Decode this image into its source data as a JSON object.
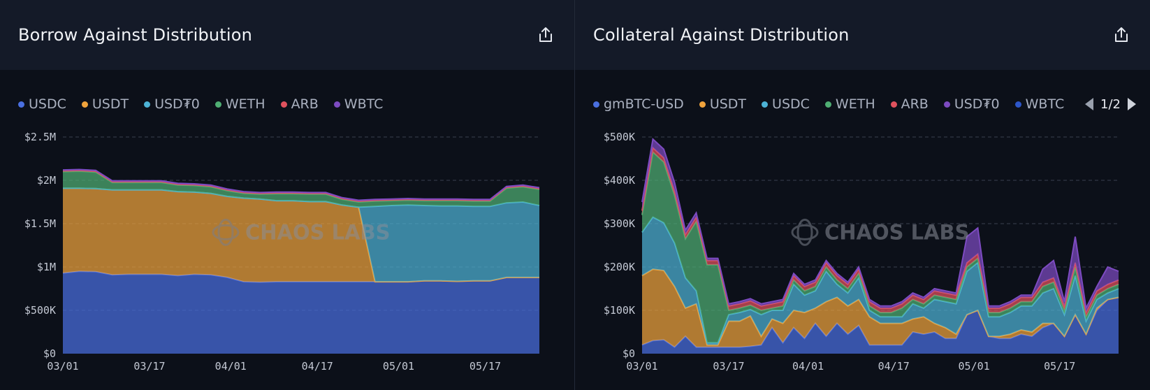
{
  "left": {
    "title": "Borrow Against Distribution",
    "watermark": "CHAOS LABS",
    "legend": [
      {
        "name": "USDC",
        "color": "#4a6fe0"
      },
      {
        "name": "USDT",
        "color": "#f0a33c"
      },
      {
        "name": "USD₮0",
        "color": "#4db3d6"
      },
      {
        "name": "WETH",
        "color": "#4fae73"
      },
      {
        "name": "ARB",
        "color": "#e0525e"
      },
      {
        "name": "WBTC",
        "color": "#7d4bc1"
      }
    ]
  },
  "right": {
    "title": "Collateral Against Distribution",
    "watermark": "CHAOS LABS",
    "legend": [
      {
        "name": "gmBTC-USD",
        "color": "#4a6fe0"
      },
      {
        "name": "USDT",
        "color": "#f0a33c"
      },
      {
        "name": "USDC",
        "color": "#4db3d6"
      },
      {
        "name": "WETH",
        "color": "#4fae73"
      },
      {
        "name": "ARB",
        "color": "#e0525e"
      },
      {
        "name": "USD₮0",
        "color": "#7d4bc1"
      },
      {
        "name": "WBTC",
        "color": "#2d56c8"
      }
    ],
    "pager": "1/2"
  },
  "chart_data": [
    {
      "type": "area",
      "title": "Borrow Against Distribution",
      "x": [
        "03/01",
        "03/04",
        "03/07",
        "03/10",
        "03/13",
        "03/16",
        "03/19",
        "03/22",
        "03/25",
        "03/28",
        "03/31",
        "04/03",
        "04/06",
        "04/09",
        "04/12",
        "04/15",
        "04/18",
        "04/21",
        "04/24",
        "04/27",
        "04/30",
        "05/03",
        "05/06",
        "05/09",
        "05/12",
        "05/15",
        "05/18",
        "05/21",
        "05/24",
        "05/27"
      ],
      "x_ticks": [
        "03/01",
        "03/17",
        "04/01",
        "04/17",
        "05/01",
        "05/17"
      ],
      "y_ticks": [
        "$0",
        "$500K",
        "$1M",
        "$1.5M",
        "$2M",
        "$2.5M"
      ],
      "ylim": [
        0,
        2500000
      ],
      "series": [
        {
          "name": "USDC",
          "color": "#4a6fe0",
          "values": [
            930000,
            950000,
            945000,
            910000,
            915000,
            915000,
            915000,
            900000,
            915000,
            910000,
            880000,
            830000,
            825000,
            830000,
            830000,
            830000,
            830000,
            830000,
            830000,
            830000,
            830000,
            830000,
            840000,
            840000,
            835000,
            840000,
            840000,
            880000,
            880000,
            880000
          ]
        },
        {
          "name": "USDT",
          "color": "#f0a33c",
          "values": [
            980000,
            960000,
            960000,
            980000,
            975000,
            975000,
            975000,
            970000,
            950000,
            940000,
            935000,
            965000,
            960000,
            935000,
            935000,
            925000,
            925000,
            885000,
            860000,
            0,
            0,
            0,
            0,
            0,
            0,
            0,
            0,
            0,
            0,
            0
          ]
        },
        {
          "name": "USD₮0",
          "color": "#4db3d6",
          "values": [
            0,
            0,
            0,
            0,
            0,
            0,
            0,
            0,
            0,
            0,
            0,
            0,
            0,
            0,
            0,
            0,
            0,
            0,
            0,
            870000,
            880000,
            885000,
            870000,
            865000,
            870000,
            860000,
            860000,
            860000,
            870000,
            830000
          ]
        },
        {
          "name": "WETH",
          "color": "#4fae73",
          "values": [
            190000,
            195000,
            190000,
            85000,
            85000,
            85000,
            85000,
            75000,
            75000,
            75000,
            65000,
            55000,
            55000,
            80000,
            80000,
            85000,
            85000,
            65000,
            60000,
            60000,
            55000,
            55000,
            55000,
            60000,
            60000,
            60000,
            60000,
            170000,
            175000,
            185000
          ]
        },
        {
          "name": "ARB",
          "color": "#e0525e",
          "values": [
            10000,
            10000,
            10000,
            10000,
            10000,
            10000,
            10000,
            10000,
            10000,
            10000,
            10000,
            10000,
            10000,
            10000,
            10000,
            10000,
            10000,
            10000,
            10000,
            10000,
            10000,
            10000,
            10000,
            10000,
            10000,
            10000,
            10000,
            10000,
            10000,
            10000
          ]
        },
        {
          "name": "WBTC",
          "color": "#7d4bc1",
          "values": [
            10000,
            10000,
            10000,
            10000,
            10000,
            10000,
            10000,
            10000,
            10000,
            10000,
            10000,
            10000,
            10000,
            10000,
            10000,
            10000,
            10000,
            10000,
            10000,
            10000,
            10000,
            10000,
            10000,
            10000,
            10000,
            10000,
            10000,
            10000,
            10000,
            10000
          ]
        }
      ]
    },
    {
      "type": "area",
      "title": "Collateral Against Distribution",
      "x": [
        "03/01",
        "03/03",
        "03/05",
        "03/07",
        "03/09",
        "03/11",
        "03/13",
        "03/15",
        "03/17",
        "03/19",
        "03/21",
        "03/23",
        "03/25",
        "03/27",
        "03/29",
        "03/31",
        "04/02",
        "04/04",
        "04/06",
        "04/08",
        "04/10",
        "04/12",
        "04/14",
        "04/16",
        "04/18",
        "04/20",
        "04/22",
        "04/24",
        "04/26",
        "04/28",
        "04/30",
        "05/02",
        "05/04",
        "05/06",
        "05/08",
        "05/10",
        "05/12",
        "05/14",
        "05/16",
        "05/18",
        "05/20",
        "05/22",
        "05/24",
        "05/26",
        "05/28"
      ],
      "x_ticks": [
        "03/01",
        "03/17",
        "04/01",
        "04/17",
        "05/01",
        "05/17"
      ],
      "y_ticks": [
        "$0",
        "$100K",
        "$200K",
        "$300K",
        "$400K",
        "$500K"
      ],
      "ylim": [
        0,
        500000
      ],
      "series": [
        {
          "name": "gmBTC-USD",
          "color": "#4a6fe0",
          "values": [
            20000,
            30000,
            32000,
            15000,
            40000,
            15000,
            15000,
            15000,
            15000,
            15000,
            17000,
            20000,
            60000,
            25000,
            60000,
            35000,
            70000,
            40000,
            70000,
            45000,
            65000,
            20000,
            20000,
            20000,
            20000,
            50000,
            45000,
            50000,
            35000,
            35000,
            90000,
            100000,
            40000,
            35000,
            35000,
            45000,
            40000,
            60000,
            70000,
            40000,
            90000,
            45000,
            100000,
            125000,
            130000
          ]
        },
        {
          "name": "USDT",
          "color": "#f0a33c",
          "values": [
            160000,
            165000,
            160000,
            140000,
            65000,
            100000,
            5000,
            5000,
            60000,
            60000,
            70000,
            20000,
            20000,
            45000,
            40000,
            60000,
            35000,
            80000,
            60000,
            65000,
            60000,
            65000,
            50000,
            50000,
            50000,
            30000,
            40000,
            20000,
            25000,
            10000,
            0,
            0,
            0,
            5000,
            10000,
            10000,
            10000,
            10000,
            0,
            0,
            0,
            0,
            5000,
            0,
            0
          ]
        },
        {
          "name": "USDC",
          "color": "#4db3d6",
          "values": [
            100000,
            120000,
            110000,
            100000,
            70000,
            30000,
            5000,
            5000,
            15000,
            20000,
            15000,
            50000,
            20000,
            30000,
            60000,
            40000,
            40000,
            70000,
            30000,
            30000,
            50000,
            15000,
            15000,
            15000,
            15000,
            35000,
            20000,
            55000,
            60000,
            70000,
            100000,
            110000,
            45000,
            45000,
            50000,
            55000,
            60000,
            70000,
            80000,
            50000,
            90000,
            30000,
            20000,
            15000,
            20000
          ]
        },
        {
          "name": "WETH",
          "color": "#4fae73",
          "values": [
            40000,
            150000,
            140000,
            110000,
            90000,
            160000,
            180000,
            180000,
            10000,
            10000,
            10000,
            10000,
            5000,
            10000,
            10000,
            10000,
            10000,
            10000,
            10000,
            10000,
            10000,
            10000,
            10000,
            10000,
            20000,
            10000,
            10000,
            10000,
            10000,
            10000,
            10000,
            10000,
            10000,
            10000,
            10000,
            10000,
            10000,
            15000,
            15000,
            10000,
            20000,
            10000,
            10000,
            10000,
            10000
          ]
        },
        {
          "name": "ARB",
          "color": "#e0525e",
          "values": [
            10000,
            10000,
            10000,
            10000,
            10000,
            10000,
            10000,
            10000,
            10000,
            10000,
            10000,
            10000,
            10000,
            10000,
            10000,
            10000,
            10000,
            10000,
            10000,
            10000,
            10000,
            10000,
            10000,
            10000,
            10000,
            10000,
            10000,
            10000,
            10000,
            10000,
            10000,
            10000,
            10000,
            10000,
            10000,
            10000,
            10000,
            10000,
            10000,
            10000,
            10000,
            10000,
            10000,
            10000,
            10000
          ]
        },
        {
          "name": "USD₮0",
          "color": "#7d4bc1",
          "values": [
            20000,
            20000,
            20000,
            20000,
            10000,
            10000,
            5000,
            5000,
            5000,
            5000,
            5000,
            5000,
            5000,
            5000,
            5000,
            5000,
            5000,
            5000,
            5000,
            5000,
            5000,
            5000,
            5000,
            5000,
            5000,
            5000,
            5000,
            5000,
            5000,
            5000,
            60000,
            60000,
            5000,
            5000,
            5000,
            5000,
            5000,
            30000,
            40000,
            10000,
            60000,
            10000,
            10000,
            40000,
            20000
          ]
        },
        {
          "name": "WBTC",
          "color": "#2d56c8",
          "values": [
            0,
            0,
            0,
            0,
            0,
            0,
            0,
            0,
            0,
            0,
            0,
            0,
            0,
            0,
            0,
            0,
            0,
            0,
            0,
            0,
            0,
            0,
            0,
            0,
            0,
            0,
            0,
            0,
            0,
            0,
            0,
            0,
            0,
            0,
            0,
            0,
            0,
            0,
            0,
            0,
            0,
            0,
            0,
            0,
            0
          ]
        }
      ]
    }
  ]
}
